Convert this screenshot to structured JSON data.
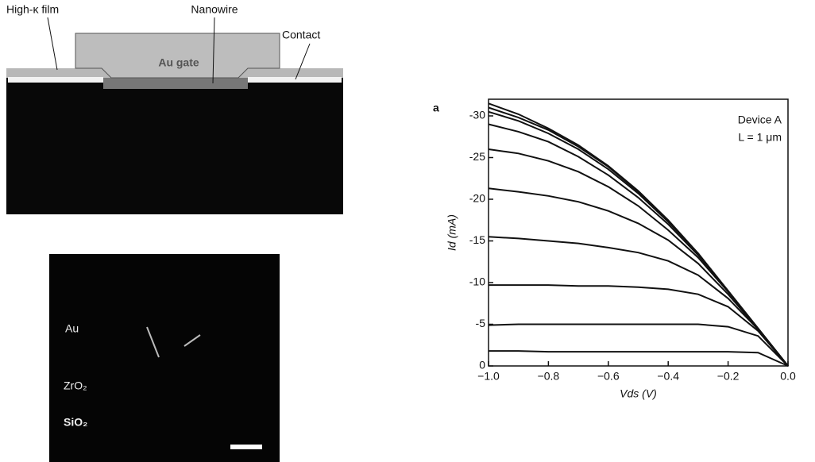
{
  "schematic": {
    "labels": {
      "high_k": "High-κ film",
      "nanowire": "Nanowire",
      "contact": "Contact",
      "gate": "Au gate"
    }
  },
  "tem": {
    "labels": {
      "au": "Au",
      "zro2": "ZrO₂",
      "sio2": "SiO₂"
    }
  },
  "chart_data": {
    "type": "line",
    "panel": "a",
    "annotations": [
      "Device A",
      "L = 1 μm"
    ],
    "xlabel": "Vds (V)",
    "ylabel": "Id (mA)",
    "x": [
      -1.0,
      -0.9,
      -0.8,
      -0.7,
      -0.6,
      -0.5,
      -0.4,
      -0.3,
      -0.2,
      -0.1,
      0.0
    ],
    "series": [
      {
        "color": "#111111",
        "values": [
          -1.8,
          -1.8,
          -1.7,
          -1.7,
          -1.7,
          -1.7,
          -1.7,
          -1.7,
          -1.7,
          -1.6,
          0
        ]
      },
      {
        "color": "#111111",
        "values": [
          -4.9,
          -5.0,
          -5.0,
          -5.0,
          -5.0,
          -5.0,
          -5.0,
          -5.0,
          -4.7,
          -3.6,
          0
        ]
      },
      {
        "color": "#111111",
        "values": [
          -9.7,
          -9.7,
          -9.7,
          -9.6,
          -9.6,
          -9.45,
          -9.2,
          -8.6,
          -7.1,
          -4.2,
          0
        ]
      },
      {
        "color": "#111111",
        "values": [
          -15.5,
          -15.3,
          -15.0,
          -14.7,
          -14.2,
          -13.6,
          -12.6,
          -10.9,
          -8.1,
          -4.4,
          0
        ]
      },
      {
        "color": "#111111",
        "values": [
          -21.3,
          -20.9,
          -20.4,
          -19.7,
          -18.6,
          -17.1,
          -15.1,
          -12.3,
          -8.6,
          -4.45,
          0
        ]
      },
      {
        "color": "#111111",
        "values": [
          -26.0,
          -25.5,
          -24.6,
          -23.3,
          -21.5,
          -19.2,
          -16.3,
          -13.0,
          -8.9,
          -4.5,
          0
        ]
      },
      {
        "color": "#111111",
        "values": [
          -29.0,
          -28.1,
          -26.9,
          -25.1,
          -22.9,
          -20.2,
          -17.0,
          -13.3,
          -9.0,
          -4.5,
          0
        ]
      },
      {
        "color": "#111111",
        "values": [
          -30.5,
          -29.4,
          -27.9,
          -26.0,
          -23.6,
          -20.7,
          -17.3,
          -13.5,
          -9.0,
          -4.5,
          0
        ]
      },
      {
        "color": "#111111",
        "values": [
          -31.0,
          -29.8,
          -28.3,
          -26.3,
          -23.9,
          -20.9,
          -17.4,
          -13.5,
          -9.0,
          -4.5,
          0
        ]
      },
      {
        "color": "#111111",
        "values": [
          -31.5,
          -30.2,
          -28.5,
          -26.5,
          -24.0,
          -21.0,
          -17.5,
          -13.5,
          -9.0,
          -4.5,
          0
        ]
      }
    ],
    "xlim": [
      -1.0,
      0.0
    ],
    "ylim": [
      0,
      -32
    ],
    "xticks": [
      {
        "value": -1,
        "label": "−1.0"
      },
      {
        "value": -0.8,
        "label": "−0.8"
      },
      {
        "value": -0.6,
        "label": "−0.6"
      },
      {
        "value": -0.4,
        "label": "−0.4"
      },
      {
        "value": -0.2,
        "label": "−0.2"
      },
      {
        "value": 0,
        "label": "0.0"
      }
    ],
    "yticks": [
      0,
      -5,
      -10,
      -15,
      -20,
      -25,
      -30
    ]
  }
}
